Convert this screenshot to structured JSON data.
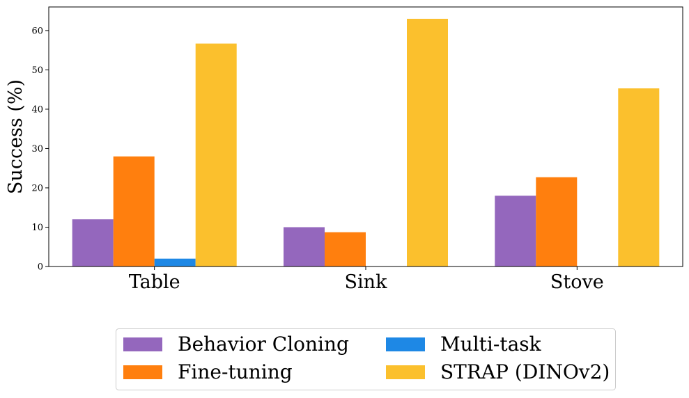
{
  "chart_data": {
    "type": "bar",
    "title": "",
    "xlabel": "",
    "ylabel": "Success (%)",
    "ylim": [
      0,
      66
    ],
    "yticks": [
      0,
      10,
      20,
      30,
      40,
      50,
      60
    ],
    "categories": [
      "Table",
      "Sink",
      "Stove"
    ],
    "series": [
      {
        "name": "Behavior Cloning",
        "color": "#9467bd",
        "values": [
          12.0,
          10.0,
          18.0
        ]
      },
      {
        "name": "Fine-tuning",
        "color": "#ff7f0e",
        "values": [
          28.0,
          8.7,
          22.7
        ]
      },
      {
        "name": "Multi-task",
        "color": "#1e88e5",
        "values": [
          2.0,
          0,
          0
        ]
      },
      {
        "name": "STRAP (DINOv2)",
        "color": "#fbc02d",
        "values": [
          56.7,
          63.0,
          45.3
        ]
      }
    ],
    "legend": {
      "placement": "bottom-center",
      "columns": 2
    },
    "grid": false
  }
}
